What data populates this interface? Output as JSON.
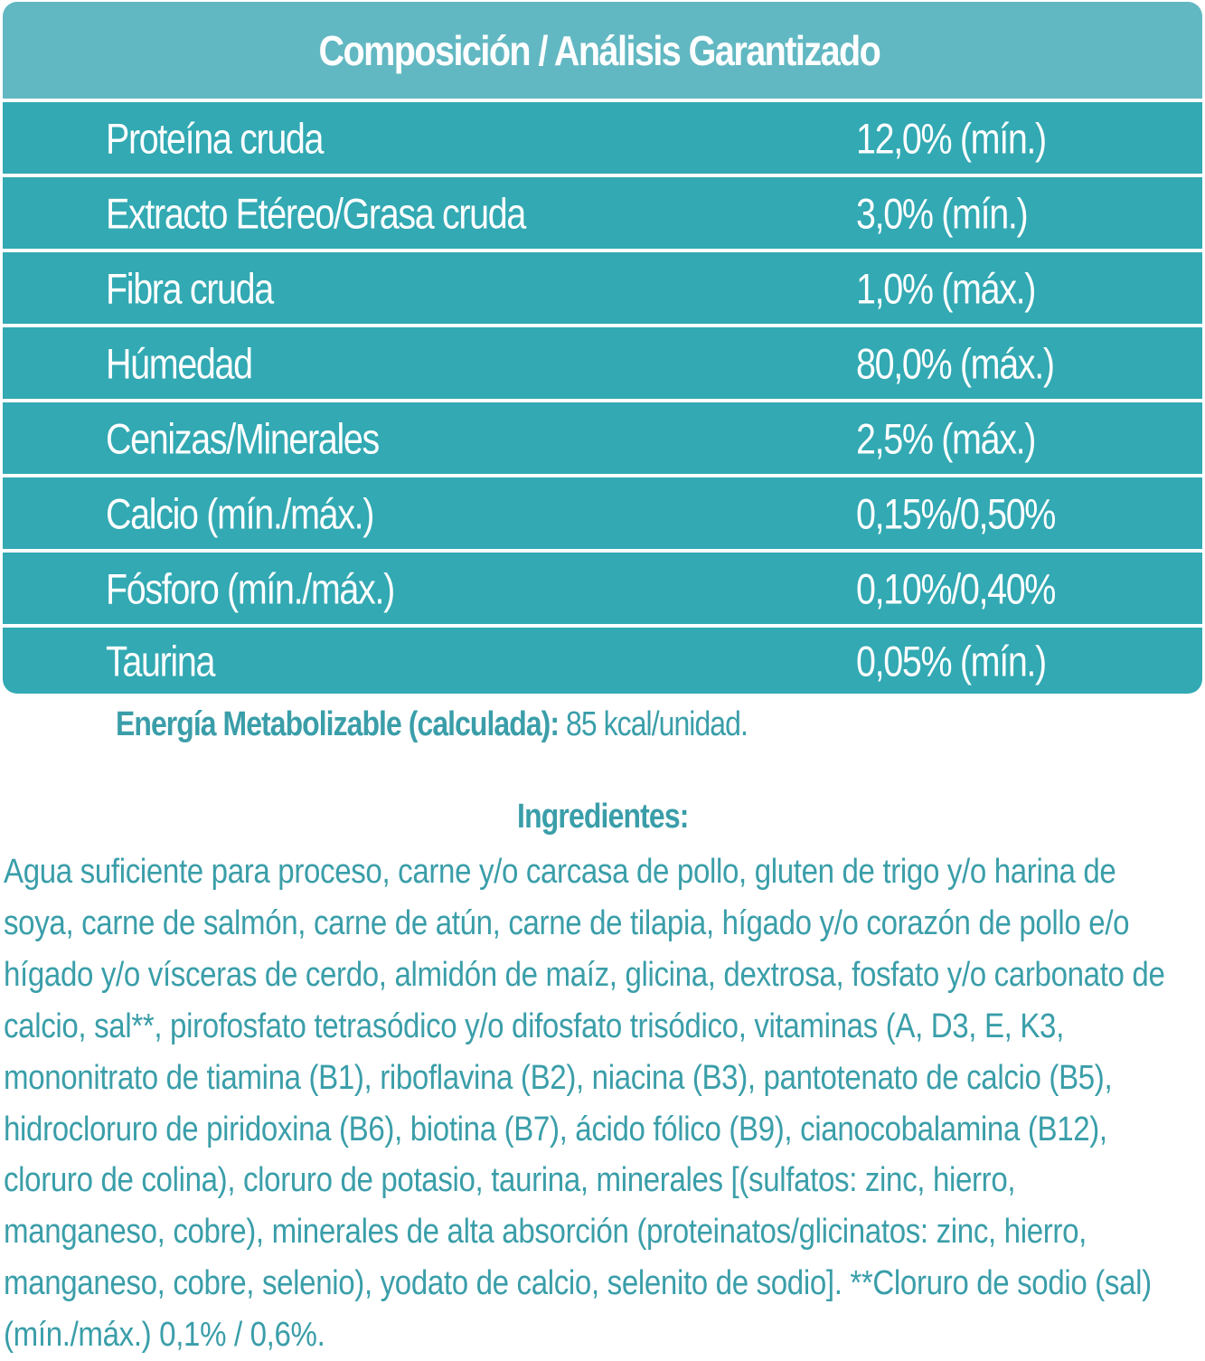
{
  "composition_table": {
    "title": "Composición / Análisis Garantizado",
    "header_color": "#62b8c2",
    "row_color": "#32a9b3",
    "rows": [
      {
        "label": "Proteína cruda",
        "value": "12,0% (mín.)"
      },
      {
        "label": "Extracto Etéreo/Grasa cruda",
        "value": "3,0% (mín.)"
      },
      {
        "label": "Fibra cruda",
        "value": "1,0% (máx.)"
      },
      {
        "label": "Húmedad",
        "value": "80,0% (máx.)"
      },
      {
        "label": "Cenizas/Minerales",
        "value": "2,5% (máx.)"
      },
      {
        "label": "Calcio (mín./máx.)",
        "value": "0,15%/0,50%"
      },
      {
        "label": "Fósforo (mín./máx.)",
        "value": "0,10%/0,40%"
      },
      {
        "label": "Taurina",
        "value": "0,05% (mín.)"
      }
    ]
  },
  "energy": {
    "label": "Energía Metabolizable (calculada):",
    "value": " 85 kcal/unidad."
  },
  "ingredients": {
    "title": "Ingredientes:",
    "text": "Agua suficiente para proceso, carne y/o carcasa de pollo, gluten de trigo y/o harina de soya, carne de salmón, carne de atún, carne de tilapia, hígado y/o corazón de pollo e/o hígado y/o vísceras de cerdo, almidón de maíz, glicina, dextrosa, fosfato y/o carbonato de calcio, sal**, pirofosfato tetrasódico y/o difosfato trisódico, vitaminas (A, D3, E, K3, mononitrato de tiamina (B1), riboflavina (B2), niacina (B3), pantotenato de calcio (B5), hidrocloruro de piridoxina (B6), biotina (B7), ácido fólico (B9), cianocobalamina (B12), cloruro de colina), cloruro de potasio, taurina, minerales [(sulfatos: zinc, hierro, manganeso, cobre), minerales de alta absorción (proteinatos/glicinatos: zinc, hierro, manganeso, cobre, selenio), yodato de calcio, selenito de sodio]. **Cloruro de sodio (sal) (mín./máx.) 0,1% / 0,6%.",
    "lines": [
      "Agua suficiente para proceso, carne y/o carcasa de pollo, gluten de trigo y/o harina de",
      "soya, carne de salmón, carne de atún, carne de tilapia, hígado y/o corazón de pollo e/o",
      "hígado y/o vísceras de cerdo, almidón de maíz, glicina, dextrosa, fosfato y/o carbonato de",
      "calcio, sal**, pirofosfato tetrasódico y/o difosfato trisódico, vitaminas (A, D3, E, K3,",
      "mononitrato de tiamina (B1), riboflavina (B2), niacina (B3), pantotenato de calcio (B5),",
      "hidrocloruro de piridoxina (B6), biotina (B7), ácido fólico (B9), cianocobalamina (B12),",
      "cloruro de colina), cloruro de potasio, taurina, minerales [(sulfatos: zinc, hierro,",
      "manganeso, cobre), minerales de alta absorción (proteinatos/glicinatos: zinc, hierro,",
      "manganeso, cobre, selenio), yodato de calcio, selenito de sodio]. **Cloruro de sodio (sal)",
      "(mín./máx.) 0,1% / 0,6%."
    ]
  },
  "text_color": "#3a9ea9"
}
